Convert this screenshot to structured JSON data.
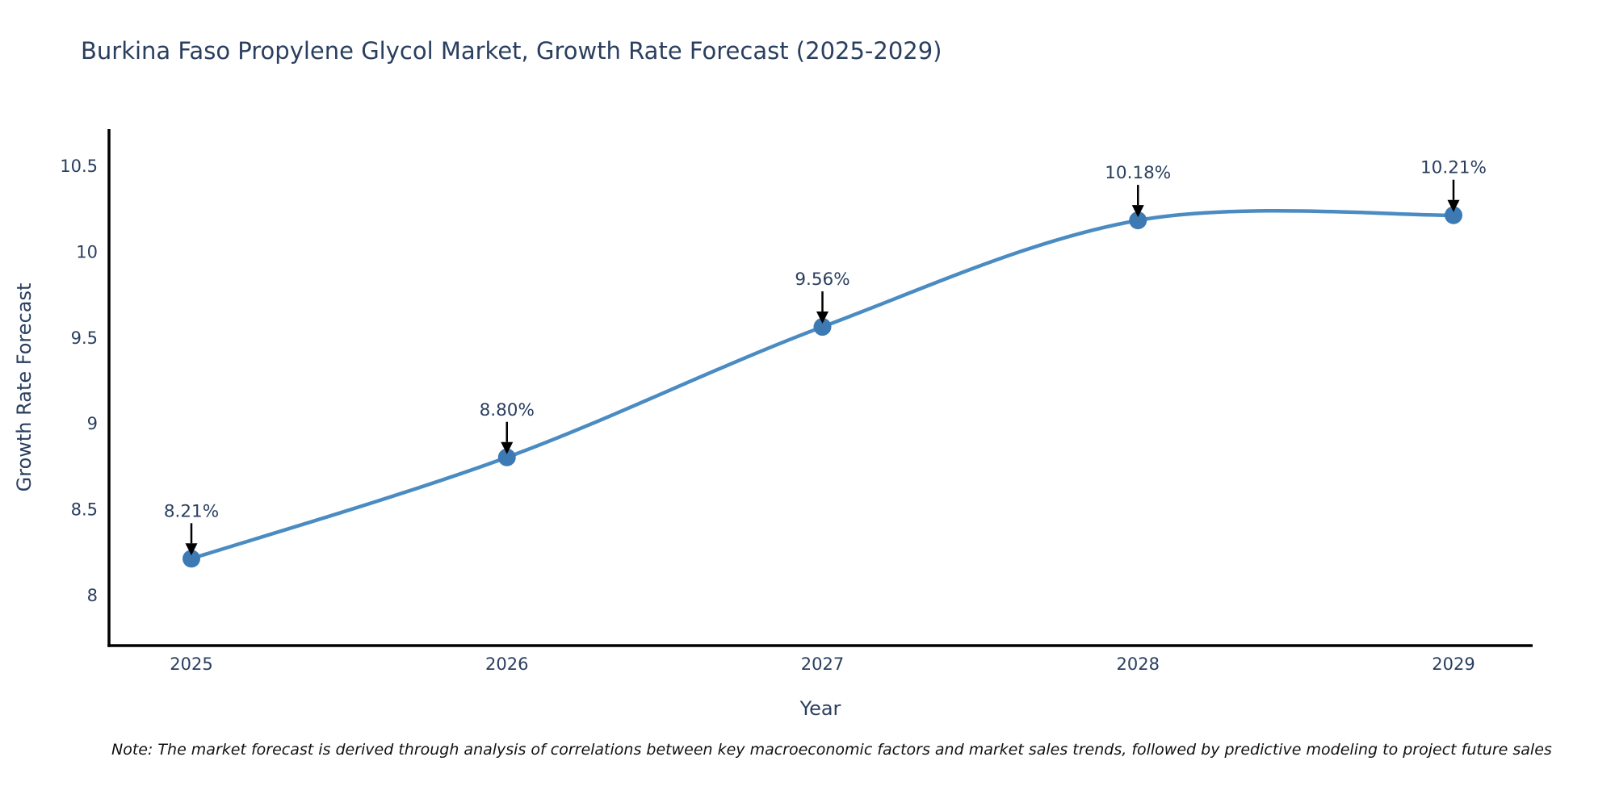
{
  "title": "Burkina Faso Propylene Glycol Market, Growth Rate Forecast (2025-2029)",
  "note": "Note: The market forecast is derived through analysis of correlations between key macroeconomic factors and market sales trends, followed by predictive modeling to project future sales",
  "chart_data": {
    "type": "line",
    "title": "Burkina Faso Propylene Glycol Market, Growth Rate Forecast (2025-2029)",
    "x": [
      2025,
      2026,
      2027,
      2028,
      2029
    ],
    "values": [
      8.21,
      8.8,
      9.56,
      10.18,
      10.21
    ],
    "point_labels": [
      "8.21%",
      "8.80%",
      "9.56%",
      "10.18%",
      "10.21%"
    ],
    "x_tick_labels": [
      "2025",
      "2026",
      "2027",
      "2028",
      "2029"
    ],
    "y_ticks": [
      8,
      8.5,
      9,
      9.5,
      10,
      10.5
    ],
    "y_tick_labels": [
      "8",
      "8.5",
      "9",
      "9.5",
      "10",
      "10.5"
    ],
    "xlabel": "Year",
    "ylabel": "Growth Rate Forecast",
    "ylim": [
      7.7,
      10.71
    ],
    "xlim": [
      2024.74,
      2029.26
    ],
    "grid": false,
    "legend_position": "none",
    "line_shape": "spline",
    "colors": {
      "line": "#4a8bc2",
      "marker": "#3d7ab3",
      "axis_line": "#000000",
      "text": "#2a3f5f",
      "annotation_arrow": "#000000"
    }
  }
}
